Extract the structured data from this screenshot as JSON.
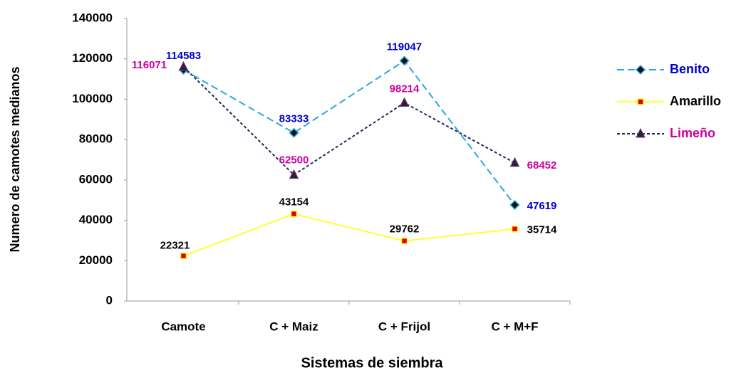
{
  "chart_data": {
    "type": "line",
    "x_label": "Sistemas de siembra",
    "y_label": "Numero de camotes medianos",
    "categories": [
      "Camote",
      "C + Maiz",
      "C + Frijol",
      "C + M+F"
    ],
    "series": [
      {
        "name": "Benito",
        "color": "#2aa9e0",
        "dash": "10,5",
        "marker": "diamond",
        "marker_color": "#111111",
        "label_color": "#0000cc",
        "values": [
          114583,
          83333,
          119047,
          47619
        ]
      },
      {
        "name": "Amarillo",
        "color": "#ffff33",
        "dash": "none",
        "marker": "square",
        "marker_color": "#e00000",
        "label_color": "#000000",
        "values": [
          22321,
          43154,
          29762,
          35714
        ]
      },
      {
        "name": "Limeño",
        "color": "#1f2a55",
        "dash": "4,3",
        "marker": "triangle",
        "marker_color": "#2a1f3f",
        "label_color": "#cc0099",
        "values": [
          116071,
          62500,
          98214,
          68452
        ]
      }
    ],
    "ylim": [
      0,
      140000
    ],
    "yticks": [
      0,
      20000,
      40000,
      60000,
      80000,
      100000,
      120000,
      140000
    ],
    "legend": "right"
  }
}
